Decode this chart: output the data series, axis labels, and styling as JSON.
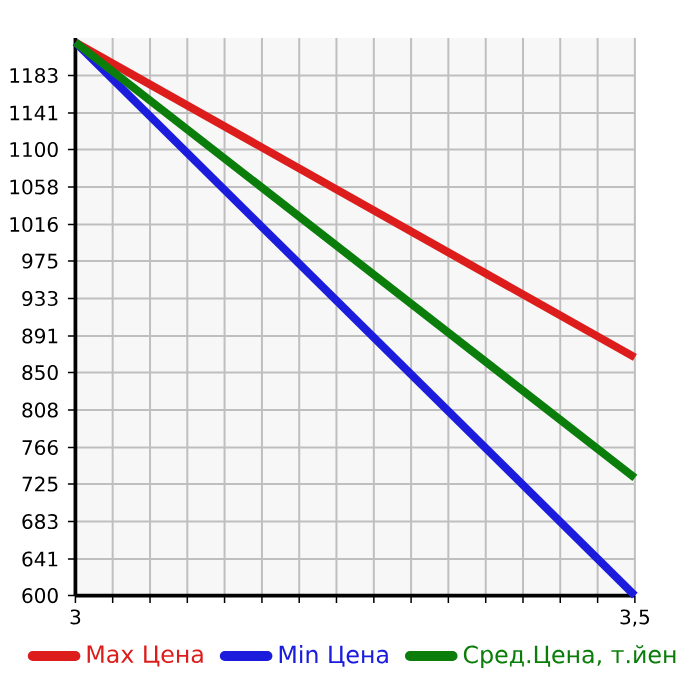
{
  "chart_data": {
    "type": "line",
    "x": [
      3,
      3.5
    ],
    "series": [
      {
        "name": "Max Цена",
        "color": "#dd1c1c",
        "values": [
          1220,
          867
        ]
      },
      {
        "name": "Min Цена",
        "color": "#1c1cdd",
        "values": [
          1220,
          600
        ]
      },
      {
        "name": "Сред.Цена, т.йен",
        "color": "#0a7d0a",
        "values": [
          1220,
          732
        ]
      }
    ],
    "xlim": [
      3,
      3.5
    ],
    "ylim": [
      600,
      1225
    ],
    "xticks": [
      {
        "value": 3,
        "label": "3"
      },
      {
        "value": 3.0333,
        "label": null
      },
      {
        "value": 3.0667,
        "label": null
      },
      {
        "value": 3.1,
        "label": null
      },
      {
        "value": 3.1333,
        "label": null
      },
      {
        "value": 3.1667,
        "label": null
      },
      {
        "value": 3.2,
        "label": null
      },
      {
        "value": 3.2333,
        "label": null
      },
      {
        "value": 3.2667,
        "label": null
      },
      {
        "value": 3.3,
        "label": null
      },
      {
        "value": 3.3333,
        "label": null
      },
      {
        "value": 3.3667,
        "label": null
      },
      {
        "value": 3.4,
        "label": null
      },
      {
        "value": 3.4333,
        "label": null
      },
      {
        "value": 3.4667,
        "label": null
      },
      {
        "value": 3.5,
        "label": "3,5"
      }
    ],
    "yticks": [
      600,
      641,
      683,
      725,
      766,
      808,
      850,
      891,
      933,
      975,
      1016,
      1058,
      1100,
      1141,
      1183
    ],
    "grid": true,
    "legend": "bottom",
    "marker": "none",
    "line_style": "solid"
  }
}
